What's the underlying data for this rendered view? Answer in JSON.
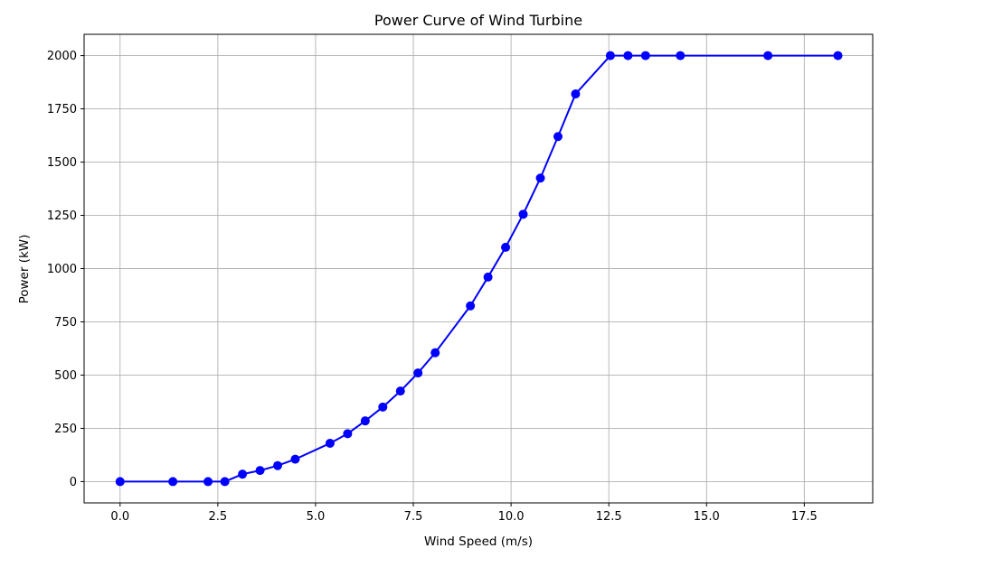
{
  "chart_data": {
    "type": "line",
    "title": "Power Curve of Wind Turbine",
    "xlabel": "Wind Speed (m/s)",
    "ylabel": "Power (kW)",
    "xlim": [
      -0.92,
      19.25
    ],
    "ylim": [
      -100,
      2100
    ],
    "xticks": [
      0,
      2.5,
      5,
      7.5,
      10,
      12.5,
      15,
      17.5
    ],
    "xtick_labels": [
      "0.0",
      "2.5",
      "5.0",
      "7.5",
      "10.0",
      "12.5",
      "15.0",
      "17.5"
    ],
    "yticks": [
      0,
      250,
      500,
      750,
      1000,
      1250,
      1500,
      1750,
      2000
    ],
    "ytick_labels": [
      "0",
      "250",
      "500",
      "750",
      "1000",
      "1250",
      "1500",
      "1750",
      "2000"
    ],
    "grid": true,
    "color": "#0000ff",
    "series": [
      {
        "x": [
          0.0,
          1.35,
          2.25,
          2.68,
          3.13,
          3.58,
          4.03,
          4.48,
          5.37,
          5.82,
          6.27,
          6.72,
          7.17,
          7.62,
          8.06,
          8.96,
          9.41,
          9.86,
          10.31,
          10.75,
          11.2,
          11.65,
          12.54,
          12.99,
          13.44,
          14.33,
          16.57,
          18.36
        ],
        "y": [
          0,
          0,
          0,
          0,
          35,
          52,
          75,
          105,
          180,
          225,
          285,
          350,
          425,
          510,
          605,
          825,
          960,
          1100,
          1255,
          1425,
          1620,
          1820,
          2000,
          2000,
          2000,
          2000,
          2000,
          2000
        ]
      }
    ]
  }
}
